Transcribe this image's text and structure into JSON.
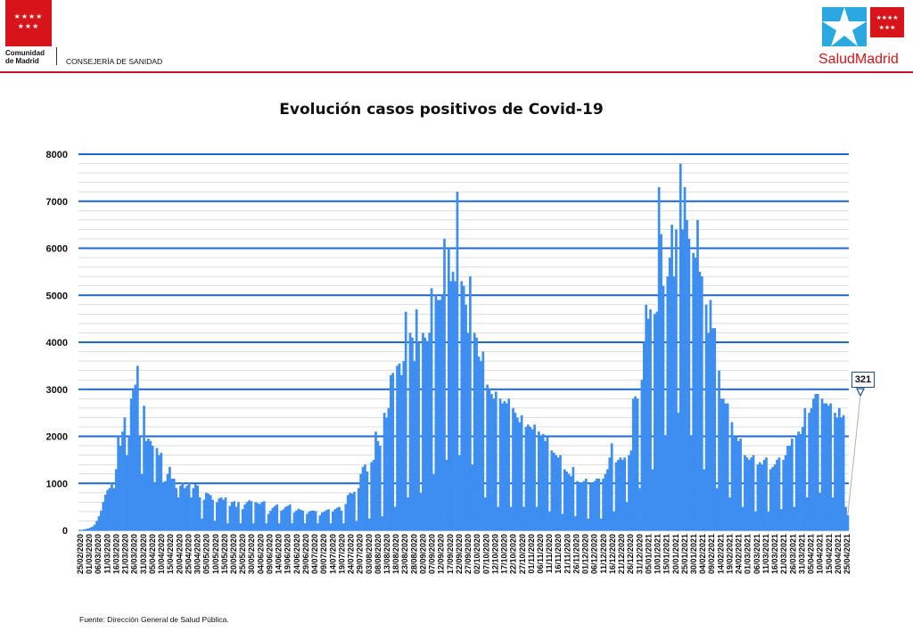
{
  "header": {
    "org_name_line1": "Comunidad",
    "org_name_line2": "de Madrid",
    "department": "CONSEJERÍA DE SANIDAD",
    "logo_right_part1": "Salud",
    "logo_right_part2": "Madrid",
    "flag_stars_row1": "★★★★",
    "flag_stars_row2": "★★★",
    "brand_color": "#d7141a"
  },
  "footer": {
    "source": "Fuente: Dirección General de Salud Pública."
  },
  "chart_data": {
    "type": "bar",
    "title": "Evolución casos positivos de Covid-19",
    "xlabel": "",
    "ylabel": "",
    "ylim": [
      0,
      8000
    ],
    "yticks": [
      0,
      1000,
      2000,
      3000,
      4000,
      5000,
      6000,
      7000,
      8000
    ],
    "grid": true,
    "bar_color": "#3d8ef0",
    "gridline_color": "#1f66d0",
    "xtick_labels": [
      "25/02/2020",
      "01/03/2020",
      "06/03/2020",
      "11/03/2020",
      "16/03/2020",
      "21/03/2020",
      "26/03/2020",
      "31/03/2020",
      "05/04/2020",
      "10/04/2020",
      "15/04/2020",
      "20/04/2020",
      "25/04/2020",
      "30/04/2020",
      "05/05/2020",
      "10/05/2020",
      "15/05/2020",
      "20/05/2020",
      "25/05/2020",
      "30/05/2020",
      "04/06/2020",
      "09/06/2020",
      "14/06/2020",
      "19/06/2020",
      "24/06/2020",
      "29/06/2020",
      "04/07/2020",
      "09/07/2020",
      "14/07/2020",
      "19/07/2020",
      "24/07/2020",
      "29/07/2020",
      "03/08/2020",
      "08/08/2020",
      "13/08/2020",
      "18/08/2020",
      "23/08/2020",
      "28/08/2020",
      "02/09/2020",
      "07/09/2020",
      "12/09/2020",
      "17/09/2020",
      "22/09/2020",
      "27/09/2020",
      "02/10/2020",
      "07/10/2020",
      "12/10/2020",
      "17/10/2020",
      "22/10/2020",
      "27/10/2020",
      "01/11/2020",
      "06/11/2020",
      "11/11/2020",
      "16/11/2020",
      "21/11/2020",
      "26/11/2020",
      "01/12/2020",
      "06/12/2020",
      "11/12/2020",
      "16/12/2020",
      "21/12/2020",
      "26/12/2020",
      "31/12/2020",
      "05/01/2021",
      "10/01/2021",
      "15/01/2021",
      "20/01/2021",
      "25/01/2021",
      "30/01/2021",
      "04/02/2021",
      "09/02/2021",
      "14/02/2021",
      "19/02/2021",
      "24/02/2021",
      "01/03/2021",
      "06/03/2021",
      "11/03/2021",
      "16/03/2021",
      "21/03/2021",
      "26/03/2021",
      "31/03/2021",
      "05/04/2021",
      "10/04/2021",
      "15/04/2021",
      "20/04/2021",
      "25/04/2021"
    ],
    "values": [
      0,
      10,
      20,
      30,
      40,
      60,
      80,
      120,
      200,
      300,
      420,
      600,
      760,
      860,
      900,
      1000,
      900,
      1300,
      2000,
      1800,
      2100,
      2400,
      1600,
      2000,
      2800,
      3000,
      3100,
      3500,
      2000,
      1200,
      2650,
      1900,
      1950,
      1900,
      1800,
      1000,
      1750,
      1600,
      1650,
      1000,
      1050,
      1200,
      1350,
      1100,
      1100,
      900,
      700,
      950,
      1000,
      900,
      950,
      1000,
      700,
      900,
      980,
      950,
      700,
      250,
      650,
      800,
      780,
      750,
      650,
      200,
      600,
      680,
      700,
      650,
      700,
      150,
      520,
      600,
      620,
      500,
      600,
      150,
      450,
      550,
      600,
      640,
      620,
      150,
      600,
      580,
      560,
      600,
      620,
      150,
      350,
      420,
      480,
      520,
      550,
      150,
      420,
      450,
      500,
      520,
      550,
      150,
      380,
      420,
      460,
      440,
      420,
      150,
      350,
      400,
      420,
      420,
      410,
      150,
      320,
      380,
      400,
      430,
      450,
      150,
      400,
      450,
      480,
      500,
      420,
      150,
      560,
      750,
      800,
      780,
      820,
      200,
      900,
      1200,
      1350,
      1400,
      1250,
      250,
      1450,
      1500,
      2100,
      1900,
      1800,
      300,
      2500,
      2400,
      2600,
      3300,
      3350,
      500,
      3500,
      3550,
      3300,
      3600,
      4650,
      700,
      4200,
      4100,
      3600,
      4700,
      4000,
      800,
      4200,
      4100,
      4000,
      4200,
      5150,
      1200,
      5000,
      4900,
      4900,
      5000,
      6200,
      1500,
      6000,
      5300,
      5500,
      5300,
      7200,
      1600,
      5300,
      5200,
      4800,
      4200,
      5400,
      1400,
      4200,
      4100,
      3700,
      3600,
      3800,
      700,
      3100,
      3000,
      2900,
      2800,
      2950,
      500,
      2800,
      2700,
      2750,
      2700,
      2800,
      500,
      2600,
      2500,
      2400,
      2300,
      2450,
      500,
      2200,
      2250,
      2200,
      2150,
      2250,
      500,
      2100,
      2000,
      2050,
      1900,
      2000,
      400,
      1700,
      1650,
      1600,
      1550,
      1600,
      350,
      1300,
      1250,
      1200,
      1150,
      1350,
      300,
      1050,
      1000,
      1000,
      1050,
      1100,
      250,
      1000,
      1000,
      1050,
      1100,
      1100,
      250,
      1100,
      1200,
      1300,
      1550,
      1850,
      400,
      1450,
      1500,
      1550,
      1500,
      1550,
      600,
      1600,
      1700,
      2800,
      2850,
      2800,
      900,
      3200,
      4000,
      4800,
      4500,
      4700,
      1300,
      4600,
      4650,
      7300,
      6300,
      5200,
      2000,
      5400,
      5800,
      6500,
      5400,
      6400,
      2500,
      7800,
      6400,
      7300,
      6600,
      6200,
      2000,
      5900,
      5800,
      6600,
      5500,
      5400,
      1300,
      4800,
      4200,
      4900,
      4300,
      4300,
      900,
      3400,
      2800,
      2800,
      2700,
      2700,
      700,
      2300,
      2000,
      2000,
      1900,
      1950,
      500,
      1600,
      1550,
      1500,
      1550,
      1600,
      400,
      1400,
      1450,
      1400,
      1500,
      1550,
      400,
      1300,
      1350,
      1400,
      1500,
      1550,
      450,
      1500,
      1600,
      1800,
      1800,
      1950,
      500,
      2000,
      2100,
      2050,
      2200,
      2600,
      700,
      2500,
      2600,
      2800,
      2900,
      2900,
      800,
      2800,
      2700,
      2700,
      2650,
      2700,
      700,
      2500,
      2400,
      2600,
      2400,
      2450,
      500,
      321
    ],
    "annotation": {
      "label": "321",
      "points_to": "last"
    }
  }
}
